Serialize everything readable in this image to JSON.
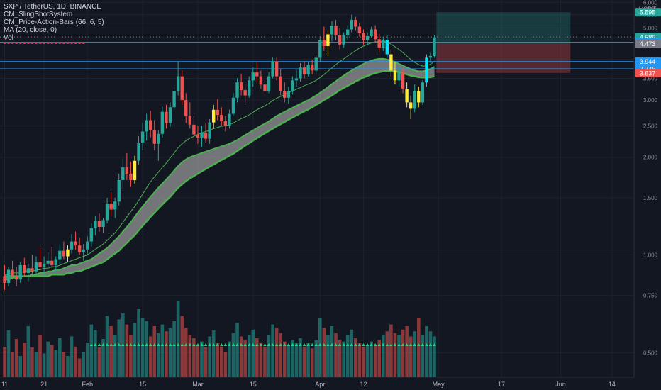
{
  "header": {
    "symbol_line": "SXP / TetherUS, 1D, BINANCE",
    "indicators": [
      "CM_SlingShotSystem",
      "CM_Price-Action-Bars (66, 6, 5)",
      "MA (20, close, 0)",
      "Vol"
    ],
    "currency": "USDT"
  },
  "colors": {
    "background": "#131722",
    "grid": "#1e222d",
    "up": "#26a69a",
    "down": "#ef5350",
    "yellow": "#ffeb3b",
    "cyan": "#00e5ff",
    "ribbon_line": "#4caf50",
    "ribbon_fill": "#9e9e9e",
    "ma_line": "#4caf50",
    "hline": "#2196f3",
    "profit_zone": "rgba(38,166,154,0.25)",
    "loss_zone": "rgba(239,83,80,0.30)",
    "vol_up": "rgba(38,166,154,0.55)",
    "vol_down": "rgba(239,83,80,0.55)",
    "marker_green": "#00e676",
    "marker_red": "#ff1744"
  },
  "chart_data": {
    "type": "candlestick",
    "y_scale": "log",
    "ylim": [
      0.42,
      6.1
    ],
    "y_ticks": [
      "0.500",
      "0.750",
      "1.000",
      "1.500",
      "2.000",
      "2.500",
      "3.000",
      "3.500",
      "4.000",
      "4.500",
      "5.000",
      "5.500",
      "6.000"
    ],
    "x_ticks": [
      {
        "label": "11",
        "day": 0
      },
      {
        "label": "21",
        "day": 10
      },
      {
        "label": "Feb",
        "day": 21
      },
      {
        "label": "15",
        "day": 35
      },
      {
        "label": "Mar",
        "day": 49
      },
      {
        "label": "15",
        "day": 63
      },
      {
        "label": "Apr",
        "day": 80
      },
      {
        "label": "12",
        "day": 91
      },
      {
        "label": "May",
        "day": 110
      },
      {
        "label": "17",
        "day": 126
      },
      {
        "label": "Jun",
        "day": 141
      },
      {
        "label": "14",
        "day": 154
      }
    ],
    "price_labels": [
      {
        "value": "5.595",
        "price": 5.595,
        "bg": "#26a69a"
      },
      {
        "value": "4.689",
        "price": 4.689,
        "bg": "#26a69a"
      },
      {
        "value": "4.519",
        "price": 4.519,
        "bg": "#2196f3"
      },
      {
        "value": "4.473",
        "price": 4.473,
        "bg": "#787b86"
      },
      {
        "value": "3.944",
        "price": 3.944,
        "bg": "#2196f3"
      },
      {
        "value": "3.745",
        "price": 3.745,
        "bg": "#2196f3"
      },
      {
        "value": "3.637",
        "price": 3.637,
        "bg": "#ef5350"
      }
    ],
    "horizontal_lines": [
      4.519,
      3.944,
      3.745
    ],
    "dotted_lines": [
      4.689
    ],
    "position": {
      "entry": 4.473,
      "target": 5.595,
      "stop": 3.637,
      "start_day": 109.5,
      "end_day": 143.5
    },
    "ohlc": [
      [
        0.86,
        0.93,
        0.78,
        0.82
      ],
      [
        0.82,
        0.92,
        0.8,
        0.9
      ],
      [
        0.9,
        0.96,
        0.84,
        0.86
      ],
      [
        0.86,
        0.92,
        0.8,
        0.84
      ],
      [
        0.84,
        0.95,
        0.82,
        0.93
      ],
      [
        0.93,
        0.98,
        0.86,
        0.88
      ],
      [
        0.88,
        0.94,
        0.83,
        0.91
      ],
      [
        0.91,
        1.0,
        0.87,
        0.89
      ],
      [
        0.89,
        0.99,
        0.86,
        0.95
      ],
      [
        0.95,
        1.05,
        0.9,
        0.92
      ],
      [
        0.92,
        0.99,
        0.86,
        0.94
      ],
      [
        0.94,
        1.02,
        0.9,
        0.96
      ],
      [
        0.96,
        1.06,
        0.91,
        0.93
      ],
      [
        0.93,
        0.99,
        0.88,
        0.97
      ],
      [
        0.97,
        1.08,
        0.94,
        1.03
      ],
      [
        1.03,
        1.1,
        0.97,
        0.99
      ],
      [
        0.99,
        1.07,
        0.95,
        1.04
      ],
      [
        1.04,
        1.16,
        1.01,
        1.1
      ],
      [
        1.1,
        1.18,
        1.04,
        1.07
      ],
      [
        1.07,
        1.13,
        1.0,
        1.02
      ],
      [
        1.02,
        1.08,
        0.96,
        1.04
      ],
      [
        1.04,
        1.14,
        1.0,
        1.1
      ],
      [
        1.1,
        1.25,
        1.06,
        1.21
      ],
      [
        1.21,
        1.32,
        1.15,
        1.27
      ],
      [
        1.27,
        1.34,
        1.18,
        1.22
      ],
      [
        1.22,
        1.3,
        1.17,
        1.28
      ],
      [
        1.28,
        1.5,
        1.25,
        1.44
      ],
      [
        1.44,
        1.56,
        1.32,
        1.38
      ],
      [
        1.38,
        1.5,
        1.3,
        1.46
      ],
      [
        1.46,
        1.78,
        1.42,
        1.7
      ],
      [
        1.7,
        1.98,
        1.6,
        1.86
      ],
      [
        1.86,
        2.06,
        1.7,
        1.78
      ],
      [
        1.78,
        1.94,
        1.62,
        1.7
      ],
      [
        1.7,
        2.02,
        1.66,
        1.95
      ],
      [
        1.95,
        2.32,
        1.9,
        2.22
      ],
      [
        2.22,
        2.56,
        2.1,
        2.4
      ],
      [
        2.4,
        2.72,
        2.25,
        2.6
      ],
      [
        2.6,
        2.78,
        2.3,
        2.42
      ],
      [
        2.42,
        2.6,
        2.1,
        2.2
      ],
      [
        2.2,
        2.42,
        1.95,
        2.36
      ],
      [
        2.36,
        2.86,
        2.3,
        2.76
      ],
      [
        2.76,
        2.9,
        2.45,
        2.55
      ],
      [
        2.55,
        2.95,
        2.48,
        2.85
      ],
      [
        2.85,
        3.28,
        2.8,
        3.2
      ],
      [
        3.2,
        3.95,
        3.1,
        3.55
      ],
      [
        3.55,
        3.7,
        2.9,
        3.0
      ],
      [
        3.0,
        3.15,
        2.55,
        2.68
      ],
      [
        2.68,
        2.95,
        2.45,
        2.52
      ],
      [
        2.52,
        2.68,
        2.25,
        2.35
      ],
      [
        2.35,
        2.5,
        2.2,
        2.3
      ],
      [
        2.3,
        2.5,
        2.15,
        2.38
      ],
      [
        2.38,
        2.55,
        2.22,
        2.28
      ],
      [
        2.28,
        2.62,
        2.2,
        2.56
      ],
      [
        2.56,
        2.9,
        2.45,
        2.8
      ],
      [
        2.8,
        3.02,
        2.6,
        2.7
      ],
      [
        2.7,
        2.85,
        2.5,
        2.58
      ],
      [
        2.58,
        2.68,
        2.4,
        2.5
      ],
      [
        2.5,
        2.8,
        2.45,
        2.72
      ],
      [
        2.72,
        3.15,
        2.68,
        3.05
      ],
      [
        3.05,
        3.5,
        2.95,
        3.4
      ],
      [
        3.4,
        3.62,
        3.1,
        3.22
      ],
      [
        3.22,
        3.35,
        2.9,
        3.1
      ],
      [
        3.1,
        3.55,
        3.05,
        3.45
      ],
      [
        3.45,
        3.78,
        3.3,
        3.65
      ],
      [
        3.65,
        3.92,
        3.4,
        3.55
      ],
      [
        3.55,
        3.7,
        3.25,
        3.35
      ],
      [
        3.35,
        3.5,
        3.1,
        3.2
      ],
      [
        3.2,
        3.65,
        3.15,
        3.55
      ],
      [
        3.55,
        4.05,
        3.5,
        3.95
      ],
      [
        3.95,
        4.06,
        3.45,
        3.55
      ],
      [
        3.55,
        3.75,
        3.1,
        3.2
      ],
      [
        3.2,
        3.4,
        2.95,
        3.05
      ],
      [
        3.05,
        3.3,
        2.92,
        3.2
      ],
      [
        3.2,
        3.55,
        3.12,
        3.45
      ],
      [
        3.45,
        3.72,
        3.3,
        3.5
      ],
      [
        3.5,
        3.9,
        3.42,
        3.78
      ],
      [
        3.78,
        3.95,
        3.5,
        3.6
      ],
      [
        3.6,
        3.92,
        3.55,
        3.85
      ],
      [
        3.85,
        4.0,
        3.6,
        3.7
      ],
      [
        3.7,
        4.12,
        3.65,
        4.05
      ],
      [
        4.05,
        4.72,
        3.95,
        4.6
      ],
      [
        4.6,
        5.05,
        4.25,
        4.4
      ],
      [
        4.4,
        4.9,
        4.1,
        4.78
      ],
      [
        4.78,
        5.25,
        4.55,
        5.08
      ],
      [
        5.08,
        5.3,
        4.6,
        4.75
      ],
      [
        4.75,
        5.0,
        4.3,
        4.45
      ],
      [
        4.45,
        4.85,
        4.35,
        4.75
      ],
      [
        4.75,
        5.1,
        4.6,
        4.95
      ],
      [
        4.95,
        5.5,
        4.85,
        5.3
      ],
      [
        5.3,
        5.42,
        4.9,
        5.05
      ],
      [
        5.05,
        5.2,
        4.7,
        4.82
      ],
      [
        4.82,
        4.95,
        4.45,
        4.6
      ],
      [
        4.6,
        4.85,
        4.45,
        4.72
      ],
      [
        4.72,
        5.05,
        4.65,
        4.95
      ],
      [
        4.95,
        5.1,
        4.5,
        4.62
      ],
      [
        4.62,
        4.8,
        4.2,
        4.35
      ],
      [
        4.35,
        4.7,
        4.25,
        4.6
      ],
      [
        4.6,
        4.75,
        4.05,
        4.15
      ],
      [
        4.15,
        4.3,
        3.55,
        3.7
      ],
      [
        3.7,
        3.95,
        3.35,
        3.45
      ],
      [
        3.45,
        3.8,
        3.3,
        3.65
      ],
      [
        3.65,
        3.82,
        3.15,
        3.25
      ],
      [
        3.25,
        3.4,
        2.85,
        2.95
      ],
      [
        2.95,
        3.1,
        2.62,
        2.82
      ],
      [
        2.82,
        3.35,
        2.75,
        3.2
      ],
      [
        3.2,
        3.3,
        2.85,
        2.95
      ],
      [
        2.95,
        3.45,
        2.9,
        3.4
      ],
      [
        3.4,
        4.15,
        3.3,
        4.05
      ],
      [
        4.05,
        4.2,
        3.9,
        4.1
      ],
      [
        4.1,
        4.75,
        4.05,
        4.68
      ]
    ],
    "candle_colors": {
      "16": "yellow",
      "33": "yellow",
      "53": "yellow",
      "82": "yellow",
      "98": "yellow",
      "99": "yellow",
      "102": "yellow",
      "103": "yellow",
      "105": "yellow",
      "97": "cyan",
      "107": "cyan"
    },
    "ma20": [
      0.87,
      0.87,
      0.88,
      0.88,
      0.88,
      0.89,
      0.89,
      0.89,
      0.9,
      0.9,
      0.91,
      0.91,
      0.92,
      0.92,
      0.93,
      0.94,
      0.95,
      0.96,
      0.97,
      0.98,
      0.99,
      1.0,
      1.02,
      1.04,
      1.06,
      1.08,
      1.11,
      1.14,
      1.17,
      1.21,
      1.26,
      1.31,
      1.36,
      1.41,
      1.47,
      1.54,
      1.61,
      1.68,
      1.74,
      1.8,
      1.86,
      1.92,
      1.99,
      2.06,
      2.14,
      2.2,
      2.25,
      2.29,
      2.32,
      2.35,
      2.38,
      2.4,
      2.42,
      2.45,
      2.47,
      2.49,
      2.5,
      2.52,
      2.55,
      2.59,
      2.63,
      2.66,
      2.7,
      2.75,
      2.8,
      2.84,
      2.88,
      2.93,
      2.99,
      3.04,
      3.08,
      3.12,
      3.16,
      3.2,
      3.24,
      3.28,
      3.32,
      3.36,
      3.4,
      3.45,
      3.52,
      3.6,
      3.68,
      3.77,
      3.86,
      3.94,
      4.02,
      4.1,
      4.18,
      4.26,
      4.34,
      4.4,
      4.45,
      4.5,
      4.53,
      4.55,
      4.55,
      4.52,
      4.46,
      4.38,
      4.3,
      4.2,
      4.1,
      4.0,
      3.92,
      3.86,
      3.82,
      3.82,
      3.87,
      3.95
    ],
    "ribbon_fast": [
      0.84,
      0.84,
      0.85,
      0.85,
      0.86,
      0.86,
      0.86,
      0.87,
      0.87,
      0.88,
      0.88,
      0.89,
      0.89,
      0.9,
      0.9,
      0.91,
      0.92,
      0.93,
      0.93,
      0.94,
      0.95,
      0.96,
      0.97,
      0.99,
      1.01,
      1.03,
      1.05,
      1.08,
      1.11,
      1.14,
      1.18,
      1.22,
      1.26,
      1.31,
      1.36,
      1.41,
      1.46,
      1.51,
      1.56,
      1.61,
      1.66,
      1.71,
      1.76,
      1.82,
      1.88,
      1.93,
      1.97,
      2.0,
      2.02,
      2.04,
      2.06,
      2.08,
      2.1,
      2.12,
      2.14,
      2.16,
      2.18,
      2.2,
      2.23,
      2.26,
      2.3,
      2.34,
      2.38,
      2.42,
      2.46,
      2.5,
      2.54,
      2.58,
      2.63,
      2.68,
      2.72,
      2.76,
      2.8,
      2.84,
      2.88,
      2.92,
      2.96,
      3.0,
      3.05,
      3.1,
      3.16,
      3.22,
      3.29,
      3.36,
      3.43,
      3.5,
      3.57,
      3.64,
      3.7,
      3.76,
      3.82,
      3.88,
      3.93,
      3.97,
      4.0,
      4.02,
      4.02,
      4.0,
      3.97,
      3.93,
      3.88,
      3.83,
      3.78,
      3.74,
      3.7,
      3.68,
      3.68,
      3.7,
      3.74,
      3.8
    ],
    "ribbon_slow": [
      0.86,
      0.86,
      0.86,
      0.86,
      0.86,
      0.86,
      0.86,
      0.86,
      0.86,
      0.86,
      0.86,
      0.86,
      0.87,
      0.87,
      0.87,
      0.87,
      0.88,
      0.88,
      0.89,
      0.89,
      0.9,
      0.91,
      0.92,
      0.93,
      0.94,
      0.95,
      0.97,
      0.99,
      1.01,
      1.03,
      1.06,
      1.09,
      1.12,
      1.15,
      1.19,
      1.23,
      1.27,
      1.31,
      1.35,
      1.39,
      1.43,
      1.47,
      1.51,
      1.56,
      1.61,
      1.65,
      1.69,
      1.72,
      1.75,
      1.78,
      1.81,
      1.84,
      1.87,
      1.9,
      1.93,
      1.96,
      1.99,
      2.02,
      2.05,
      2.09,
      2.13,
      2.17,
      2.21,
      2.25,
      2.29,
      2.33,
      2.37,
      2.41,
      2.45,
      2.49,
      2.53,
      2.57,
      2.61,
      2.65,
      2.69,
      2.73,
      2.77,
      2.81,
      2.85,
      2.9,
      2.95,
      3.0,
      3.05,
      3.1,
      3.16,
      3.22,
      3.27,
      3.32,
      3.37,
      3.42,
      3.47,
      3.52,
      3.56,
      3.6,
      3.63,
      3.66,
      3.68,
      3.69,
      3.69,
      3.68,
      3.66,
      3.63,
      3.6,
      3.57,
      3.55,
      3.53,
      3.52,
      3.52,
      3.53,
      3.55
    ],
    "volume": [
      0.35,
      0.55,
      0.3,
      0.45,
      0.25,
      0.4,
      0.6,
      0.35,
      0.3,
      0.5,
      0.28,
      0.42,
      0.38,
      0.32,
      0.46,
      0.3,
      0.25,
      0.48,
      0.36,
      0.22,
      0.3,
      0.4,
      0.62,
      0.55,
      0.35,
      0.45,
      0.72,
      0.6,
      0.5,
      0.68,
      0.75,
      0.62,
      0.5,
      0.64,
      0.8,
      0.7,
      0.66,
      0.48,
      0.6,
      0.52,
      0.62,
      0.54,
      0.58,
      0.66,
      0.9,
      0.72,
      0.58,
      0.5,
      0.46,
      0.38,
      0.42,
      0.35,
      0.48,
      0.55,
      0.4,
      0.36,
      0.3,
      0.42,
      0.52,
      0.64,
      0.48,
      0.44,
      0.5,
      0.56,
      0.46,
      0.4,
      0.36,
      0.5,
      0.62,
      0.58,
      0.52,
      0.42,
      0.38,
      0.44,
      0.4,
      0.46,
      0.36,
      0.4,
      0.34,
      0.44,
      0.7,
      0.58,
      0.5,
      0.6,
      0.52,
      0.44,
      0.42,
      0.5,
      0.56,
      0.46,
      0.4,
      0.36,
      0.38,
      0.42,
      0.38,
      0.44,
      0.5,
      0.54,
      0.62,
      0.52,
      0.5,
      0.56,
      0.6,
      0.48,
      0.54,
      0.7,
      0.5,
      0.6,
      0.54,
      0.48
    ]
  }
}
